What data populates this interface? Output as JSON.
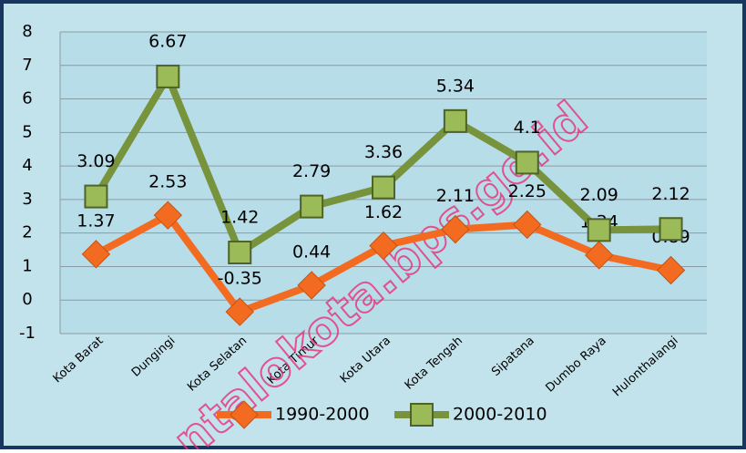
{
  "chart_data": {
    "type": "line",
    "categories": [
      "Kota Barat",
      "Dungingi",
      "Kota Selatan",
      "Kota Timur",
      "Kota Utara",
      "Kota Tengah",
      "Sipatana",
      "Dumbo Raya",
      "Hulonthalangi"
    ],
    "series": [
      {
        "name": "1990-2000",
        "color": "#f26b21",
        "marker": "diamond",
        "values": [
          1.37,
          2.53,
          -0.35,
          0.44,
          1.62,
          2.11,
          2.25,
          1.34,
          0.89
        ]
      },
      {
        "name": "2000-2010",
        "color": "#77933c",
        "marker": "square",
        "values": [
          3.09,
          6.67,
          1.42,
          2.79,
          3.36,
          5.34,
          4.1,
          2.09,
          2.12
        ]
      }
    ],
    "ylim": [
      -1,
      8
    ],
    "yticks": [
      -1,
      0,
      1,
      2,
      3,
      4,
      5,
      6,
      7,
      8
    ],
    "grid": true,
    "legend": "bottom",
    "watermark": "ntalokota.bps.go.id"
  }
}
